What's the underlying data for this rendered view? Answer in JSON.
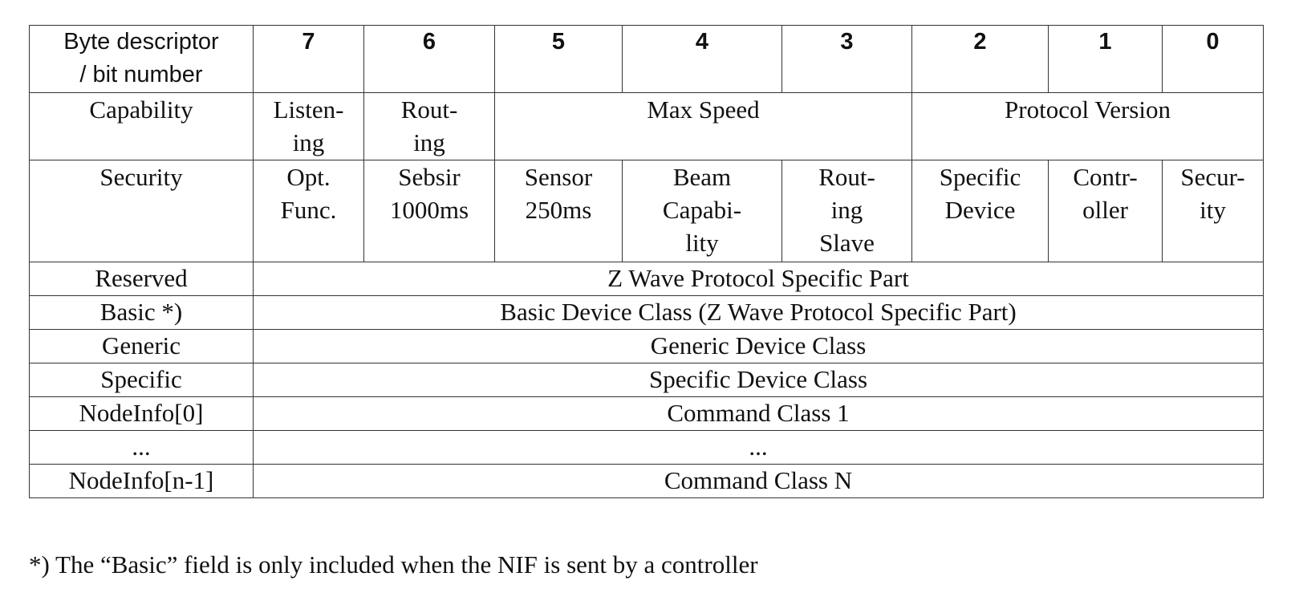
{
  "table": {
    "header": [
      "Byte descriptor\n/ bit number",
      "7",
      "6",
      "5",
      "4",
      "3",
      "2",
      "1",
      "0"
    ],
    "rows": [
      [
        "Capability",
        "Listen-\ning",
        "Rout-\ning",
        "Max Speed",
        "Protocol Version"
      ],
      [
        "Security",
        "Opt.\nFunc.",
        "Sebsir\n1000ms",
        "Sensor\n250ms",
        "Beam\nCapabi-\nlity",
        "Rout-\ning\nSlave",
        "Specific\nDevice",
        "Contr-\noller",
        "Secur-\nity"
      ],
      [
        "Reserved",
        "Z Wave Protocol Specific Part"
      ],
      [
        "Basic *)",
        "Basic Device Class (Z Wave Protocol Specific Part)"
      ],
      [
        "Generic",
        "Generic Device Class"
      ],
      [
        "Specific",
        "Specific Device Class"
      ],
      [
        "NodeInfo[0]",
        "Command Class 1"
      ],
      [
        "...",
        "..."
      ],
      [
        "NodeInfo[n-1]",
        "Command Class N"
      ]
    ]
  },
  "footnote": "*) The “Basic” field is only included when the NIF is sent by a controller"
}
